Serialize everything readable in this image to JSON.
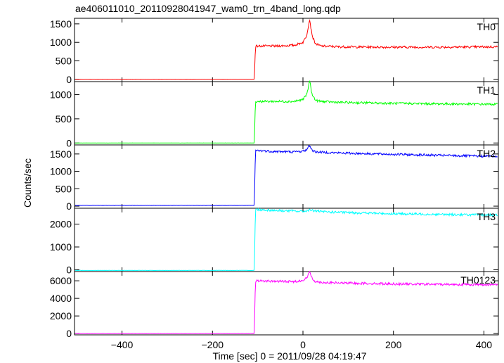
{
  "chart_data": {
    "type": "line",
    "title": "ae406011010_20110928041947_wam0_trn_4band_long.qdp",
    "xlabel": "Time [sec] 0 = 2011/09/28 04:19:47",
    "ylabel": "Counts/sec",
    "xlim": [
      -505,
      432
    ],
    "xticks": [
      -400,
      -200,
      0,
      200,
      400
    ],
    "xtick_labels": [
      "−400",
      "−200",
      "0",
      "200",
      "400"
    ],
    "panels": [
      {
        "name": "TH0",
        "color": "#ff0000",
        "ylim": [
          -60,
          1650
        ],
        "yticks": [
          0,
          500,
          1000,
          1500
        ],
        "series": {
          "x": [
            -505,
            -108,
            -107,
            -105,
            -60,
            -20,
            0,
            8,
            12,
            15,
            18,
            22,
            28,
            40,
            80,
            200,
            300,
            432
          ],
          "y": [
            0,
            0,
            200,
            900,
            900,
            920,
            1000,
            1180,
            1450,
            1620,
            1350,
            1120,
            960,
            900,
            880,
            870,
            870,
            880
          ]
        }
      },
      {
        "name": "TH1",
        "color": "#00ff00",
        "ylim": [
          -40,
          1270
        ],
        "yticks": [
          0,
          500,
          1000
        ],
        "series": {
          "x": [
            -505,
            -108,
            -107,
            -105,
            -60,
            -20,
            0,
            8,
            12,
            15,
            18,
            22,
            28,
            40,
            80,
            200,
            300,
            432
          ],
          "y": [
            0,
            0,
            200,
            860,
            860,
            860,
            900,
            1000,
            1150,
            1300,
            1100,
            970,
            880,
            860,
            840,
            820,
            810,
            800
          ]
        }
      },
      {
        "name": "TH2",
        "color": "#0000ff",
        "ylim": [
          -60,
          1760
        ],
        "yticks": [
          0,
          500,
          1000,
          1500
        ],
        "series": {
          "x": [
            -505,
            -108,
            -107,
            -105,
            -60,
            -20,
            0,
            8,
            12,
            15,
            18,
            22,
            28,
            40,
            80,
            200,
            300,
            432
          ],
          "y": [
            20,
            20,
            400,
            1600,
            1570,
            1560,
            1580,
            1620,
            1700,
            1740,
            1660,
            1590,
            1560,
            1550,
            1530,
            1490,
            1460,
            1430
          ]
        }
      },
      {
        "name": "TH3",
        "color": "#00ffff",
        "ylim": [
          -80,
          2700
        ],
        "yticks": [
          0,
          1000,
          2000
        ],
        "series": {
          "x": [
            -505,
            -108,
            -107,
            -105,
            -60,
            -20,
            0,
            15,
            40,
            80,
            200,
            300,
            432
          ],
          "y": [
            -30,
            -30,
            600,
            2650,
            2600,
            2580,
            2560,
            2620,
            2550,
            2520,
            2460,
            2430,
            2400
          ]
        }
      },
      {
        "name": "TH0123",
        "color": "#ff00ff",
        "ylim": [
          -150,
          7050
        ],
        "yticks": [
          0,
          2000,
          4000,
          6000
        ],
        "series": {
          "x": [
            -505,
            -108,
            -107,
            -105,
            -60,
            -20,
            0,
            8,
            12,
            15,
            18,
            22,
            28,
            40,
            80,
            200,
            300,
            432
          ],
          "y": [
            0,
            0,
            1500,
            6000,
            5950,
            5900,
            6050,
            6300,
            6700,
            7000,
            6600,
            6150,
            5900,
            5820,
            5750,
            5650,
            5600,
            5550
          ]
        }
      }
    ]
  }
}
